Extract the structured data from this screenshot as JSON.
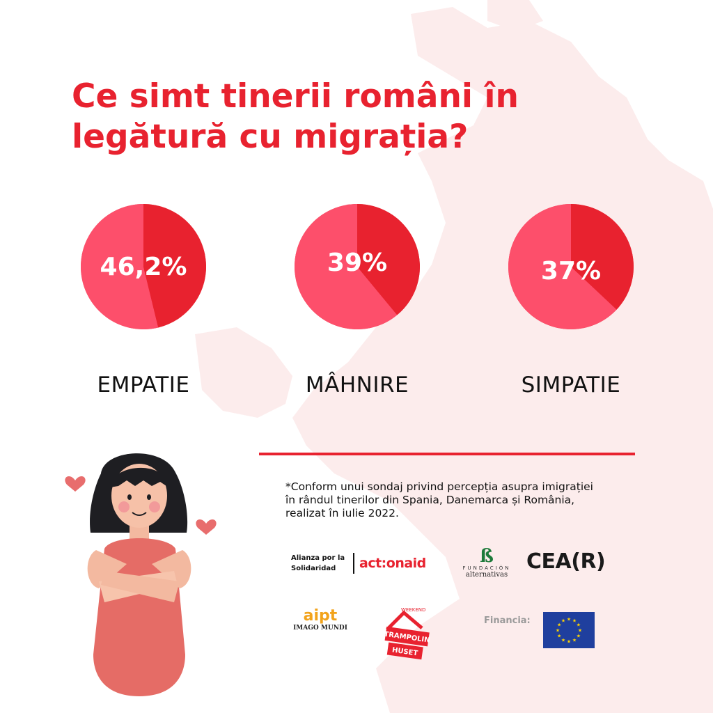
{
  "title": "Ce simt tinerii români în legătură cu migrația?",
  "colors": {
    "accent": "#e8222f",
    "slice_light": "#fd4f6b",
    "map": "#fcecec"
  },
  "chart_data": [
    {
      "type": "pie",
      "label": "EMPATIE",
      "display_value": "46,2%",
      "value": 46.2
    },
    {
      "type": "pie",
      "label": "MÂHNIRE",
      "display_value": "39%",
      "value": 39
    },
    {
      "type": "pie",
      "label": "SIMPATIE",
      "display_value": "37%",
      "value": 37
    }
  ],
  "footnote": "*Conform unui sondaj privind percepția asupra imigrației în rândul tinerilor din Spania, Danemarca și România, realizat în iulie 2022.",
  "logos": {
    "alianza_line1": "Alianza por la",
    "alianza_line2": "Solidaridad",
    "actionaid": "act:onaid",
    "fundacion_mark": "ß",
    "fundacion_top": "FUNDACIÓN",
    "fundacion_bottom": "alternativas",
    "cear": "CEA(R)",
    "aipt": "aipt",
    "imago_mundi": "IMAGO MUNDI",
    "trampolin_weekend": "WEEKEND",
    "trampolin_1": "TRAMPOLIN",
    "trampolin_2": "HUSET",
    "financia": "Financia:"
  }
}
